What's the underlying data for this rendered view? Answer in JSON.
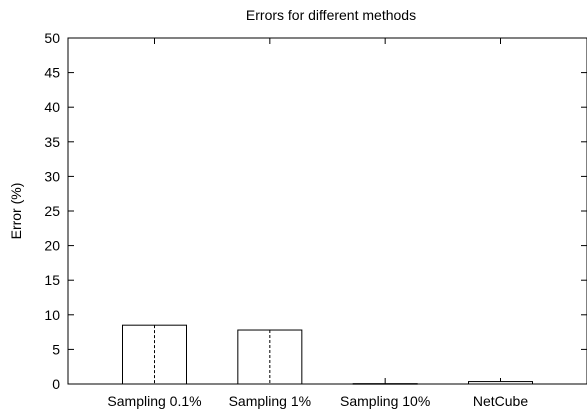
{
  "chart_data": {
    "type": "bar",
    "title": "Errors for different methods",
    "xlabel": "",
    "ylabel": "Error (%)",
    "ylim": [
      0,
      50
    ],
    "yticks": [
      0,
      5,
      10,
      15,
      20,
      25,
      30,
      35,
      40,
      45,
      50
    ],
    "categories": [
      "Sampling 0.1%",
      "Sampling 1%",
      "Sampling 10%",
      "NetCube"
    ],
    "values": [
      8.5,
      7.8,
      0.05,
      0.35
    ],
    "grid": false,
    "legend": "none"
  }
}
